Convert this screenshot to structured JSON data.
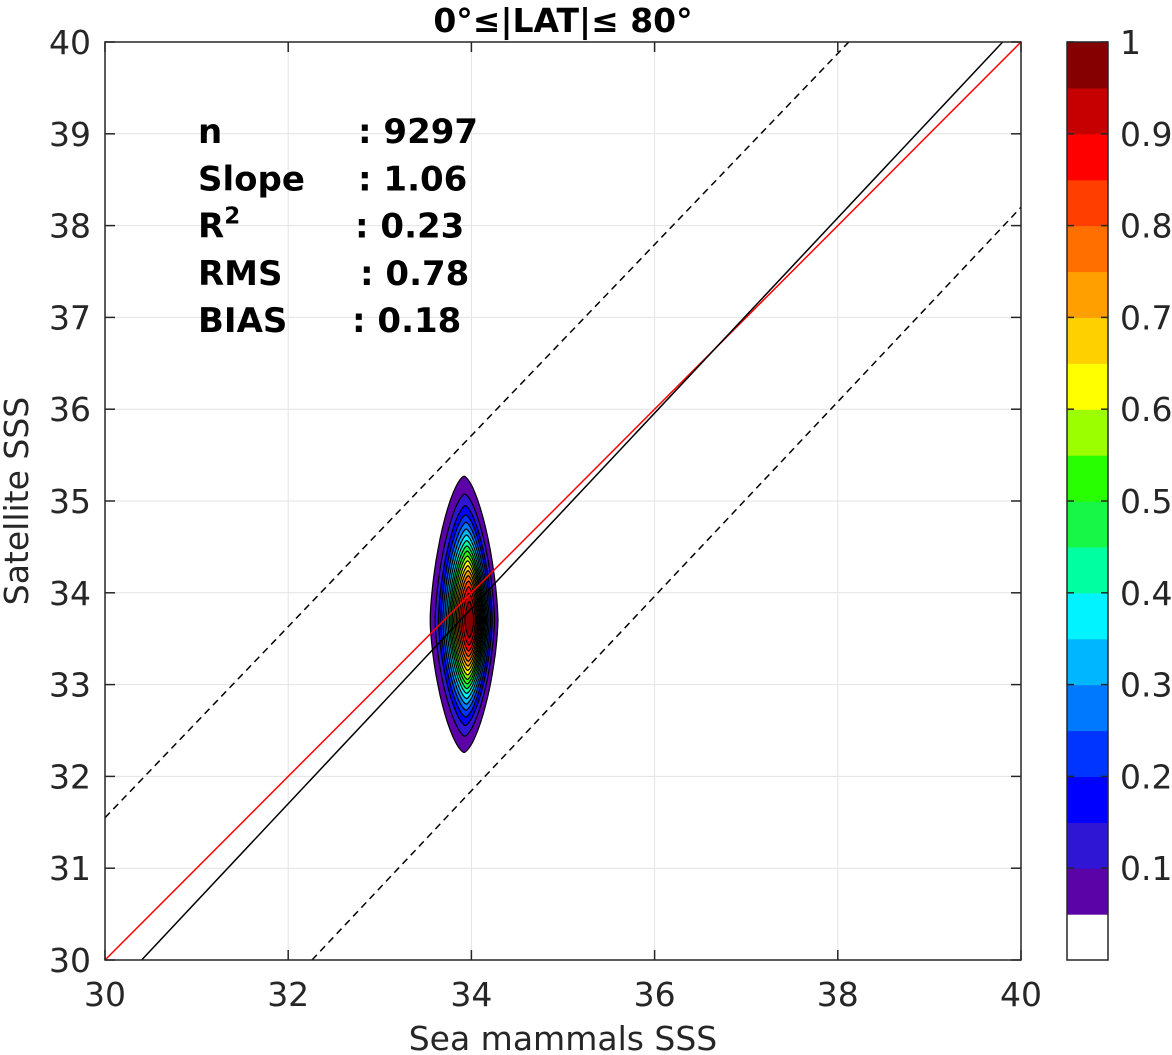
{
  "chart_data": {
    "type": "contour",
    "title": "0°≤|LAT|≤ 80°",
    "xlabel": "Sea mammals SSS",
    "ylabel": "Satellite SSS",
    "xlim": [
      30,
      40
    ],
    "ylim": [
      30,
      40
    ],
    "xticks": [
      "30",
      "32",
      "34",
      "36",
      "38",
      "40"
    ],
    "yticks": [
      "30",
      "31",
      "32",
      "33",
      "34",
      "35",
      "36",
      "37",
      "38",
      "39",
      "40"
    ],
    "grid": true,
    "stats": [
      {
        "label": "n",
        "value": ": 9297"
      },
      {
        "label": "Slope",
        "value": ": 1.06"
      },
      {
        "label": "R",
        "label_sup": "2",
        "value": ": 0.23"
      },
      {
        "label": "RMS",
        "value": ": 0.78"
      },
      {
        "label": "BIAS",
        "value": ": 0.18"
      }
    ],
    "lines": [
      {
        "name": "",
        "style": "solid",
        "color": "#ff0000",
        "x": [
          30,
          40
        ],
        "y": [
          30,
          40
        ]
      },
      {
        "name": "",
        "style": "solid",
        "color": "#000000",
        "x": [
          30.4,
          39.8
        ],
        "y": [
          30,
          40
        ]
      },
      {
        "name": "",
        "style": "dashed",
        "color": "#000000",
        "x": [
          30,
          38.12
        ],
        "y": [
          31.55,
          40
        ]
      },
      {
        "name": "",
        "style": "dashed",
        "color": "#000000",
        "x": [
          32.26,
          40
        ],
        "y": [
          30,
          38.2
        ]
      }
    ],
    "density": {
      "center": [
        33.92,
        33.7
      ],
      "levels": [
        0.05,
        0.1,
        0.15,
        0.2,
        0.25,
        0.3,
        0.35,
        0.4,
        0.45,
        0.5,
        0.55,
        0.6,
        0.65,
        0.7,
        0.75,
        0.8,
        0.85,
        0.9,
        0.95
      ],
      "x_half_width_at_min_level": 0.37,
      "y_top_at_min_level": 35.27,
      "y_bottom_at_min_level": 32.26
    },
    "colorbar": {
      "ticks": [
        "0.1",
        "0.2",
        "0.3",
        "0.4",
        "0.5",
        "0.6",
        "0.7",
        "0.8",
        "0.9",
        "1"
      ],
      "tick_values": [
        0.1,
        0.2,
        0.3,
        0.4,
        0.5,
        0.6,
        0.7,
        0.8,
        0.9,
        1.0
      ],
      "range": [
        0,
        1
      ],
      "colors": [
        "#ffffff",
        "#5c03a8",
        "#2f16d4",
        "#0000ff",
        "#0035ff",
        "#0079ff",
        "#00b6ff",
        "#00f3ff",
        "#00ffa1",
        "#16f748",
        "#28ff00",
        "#9cff00",
        "#ffff00",
        "#ffd000",
        "#ff9f00",
        "#ff6f00",
        "#ff3e00",
        "#ff0000",
        "#c60000",
        "#850000"
      ]
    }
  }
}
